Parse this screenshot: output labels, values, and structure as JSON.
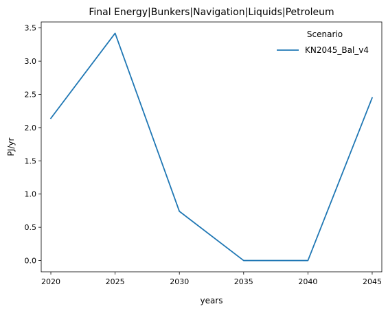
{
  "chart_data": {
    "type": "line",
    "title": "Final Energy|Bunkers|Navigation|Liquids|Petroleum",
    "xlabel": "years",
    "ylabel": "PJ/yr",
    "x": [
      2020,
      2025,
      2030,
      2035,
      2040,
      2045
    ],
    "series": [
      {
        "name": "KN2045_Bal_v4",
        "color": "#1f77b4",
        "values": [
          2.14,
          3.42,
          0.74,
          0.0,
          0.0,
          2.45
        ]
      }
    ],
    "xlim": [
      2019.25,
      2045.75
    ],
    "ylim": [
      -0.17,
      3.59
    ],
    "xticks": [
      2020,
      2025,
      2030,
      2035,
      2040,
      2045
    ],
    "xtick_labels": [
      "2020",
      "2025",
      "2030",
      "2035",
      "2040",
      "2045"
    ],
    "yticks": [
      0.0,
      0.5,
      1.0,
      1.5,
      2.0,
      2.5,
      3.0,
      3.5
    ],
    "ytick_labels": [
      "0.0",
      "0.5",
      "1.0",
      "1.5",
      "2.0",
      "2.5",
      "3.0",
      "3.5"
    ],
    "grid": false,
    "legend": {
      "title": "Scenario",
      "placement": "top-right"
    }
  }
}
